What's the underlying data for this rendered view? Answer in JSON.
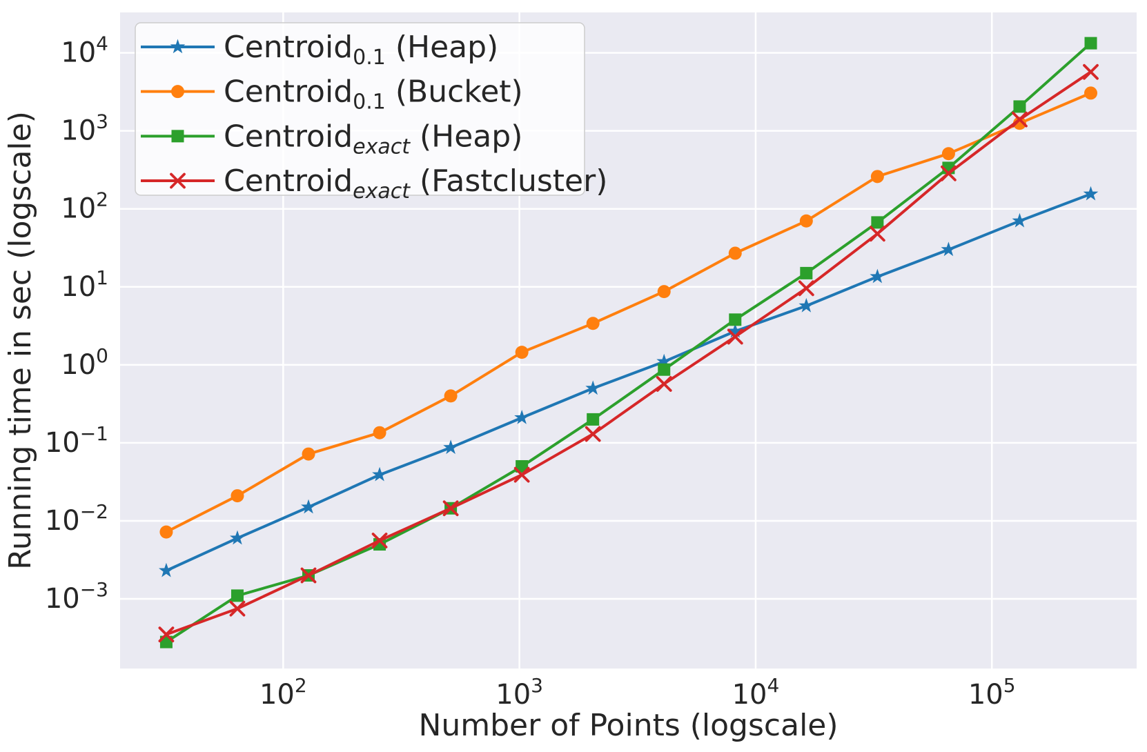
{
  "figure": {
    "background": "#ffffff",
    "plot_background": "#eaeaf2",
    "grid_color": "#ffffff",
    "text_color": "#262626",
    "legend_border_color": "#cccccc",
    "legend_background": "rgba(255,255,255,0.8)"
  },
  "chart_data": {
    "type": "line",
    "title": "",
    "xlabel": "Number of Points (logscale)",
    "ylabel": "Running time in sec (logscale)",
    "x_scale": "log",
    "y_scale": "log",
    "grid": true,
    "legend_position": "upper left",
    "xlim": [
      20.4,
      410000
    ],
    "ylim": [
      0.000128,
      33000
    ],
    "x_ticks": [
      100,
      1000,
      10000,
      100000
    ],
    "y_ticks": [
      0.001,
      0.01,
      0.1,
      1,
      10,
      100,
      1000,
      10000
    ],
    "x": [
      32,
      64,
      128,
      256,
      512,
      1024,
      2048,
      4096,
      8192,
      16384,
      32768,
      65536,
      131072,
      262144
    ],
    "series": [
      {
        "name": "Centroid_0.1 (Heap)",
        "legend": {
          "base": "Centroid",
          "sub": "0.1",
          "sub_italic": false,
          "rest": " (Heap)"
        },
        "color": "#1f77b4",
        "marker": "star",
        "values": [
          0.0023,
          0.006,
          0.015,
          0.039,
          0.087,
          0.21,
          0.5,
          1.1,
          2.7,
          5.7,
          13.5,
          30,
          70,
          155
        ]
      },
      {
        "name": "Centroid_0.1 (Bucket)",
        "legend": {
          "base": "Centroid",
          "sub": "0.1",
          "sub_italic": false,
          "rest": " (Bucket)"
        },
        "color": "#ff7f0e",
        "marker": "circle",
        "values": [
          0.0072,
          0.021,
          0.072,
          0.135,
          0.4,
          1.45,
          3.4,
          8.7,
          27,
          70,
          260,
          510,
          1250,
          3050
        ]
      },
      {
        "name": "Centroid_exact (Heap)",
        "legend": {
          "base": "Centroid",
          "sub": "exact",
          "sub_italic": true,
          "rest": " (Heap)"
        },
        "color": "#2ca02c",
        "marker": "square",
        "values": [
          0.00028,
          0.0011,
          0.002,
          0.005,
          0.0145,
          0.05,
          0.2,
          0.87,
          3.8,
          15,
          67,
          335,
          2050,
          13300
        ]
      },
      {
        "name": "Centroid_exact (Fastcluster)",
        "legend": {
          "base": "Centroid",
          "sub": "exact",
          "sub_italic": true,
          "rest": " (Fastcluster)"
        },
        "color": "#d62728",
        "marker": "x",
        "values": [
          0.00035,
          0.00075,
          0.002,
          0.0056,
          0.0145,
          0.039,
          0.13,
          0.57,
          2.3,
          9.6,
          48,
          285,
          1400,
          5700
        ]
      }
    ]
  }
}
